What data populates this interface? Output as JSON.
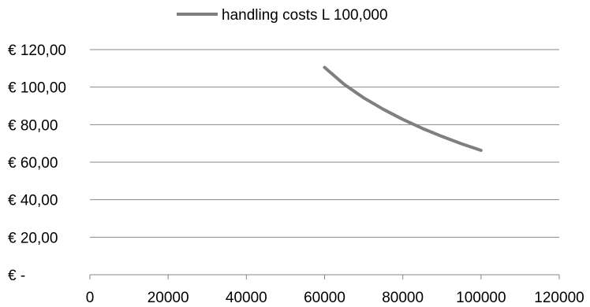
{
  "chart_data": {
    "type": "line",
    "title": "",
    "xlabel": "",
    "ylabel": "",
    "xlim": [
      0,
      120000
    ],
    "ylim": [
      0,
      120
    ],
    "x_ticks": [
      0,
      20000,
      40000,
      60000,
      80000,
      100000,
      120000
    ],
    "x_tick_labels": [
      "0",
      "20000",
      "40000",
      "60000",
      "80000",
      "100000",
      "120000"
    ],
    "y_ticks": [
      0,
      20,
      40,
      60,
      80,
      100,
      120
    ],
    "y_tick_labels": [
      "€ -",
      "€ 20,00",
      "€ 40,00",
      "€ 60,00",
      "€ 80,00",
      "€ 100,00",
      "€ 120,00"
    ],
    "grid": "horizontal",
    "legend_position": "top",
    "series": [
      {
        "name": "handling costs L 100,000",
        "color": "#7f7f7f",
        "x": [
          60000,
          65000,
          70000,
          75000,
          80000,
          85000,
          90000,
          95000,
          100000
        ],
        "values": [
          110.5,
          101.5,
          94.3,
          88.2,
          82.8,
          78.0,
          73.7,
          69.8,
          66.3
        ]
      }
    ]
  }
}
